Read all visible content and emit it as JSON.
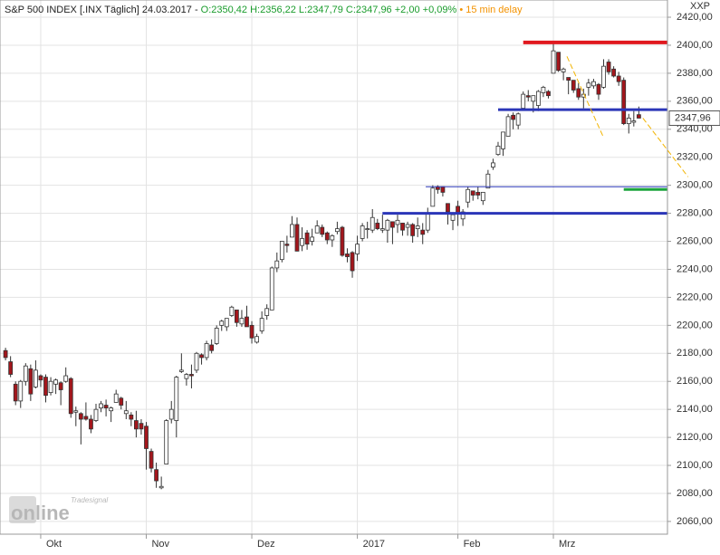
{
  "chart_data": {
    "type": "candlestick",
    "title": "S&P 500 INDEX [.INX Täglich] 24.03.2017 -",
    "ohlc": "O:2350,42 H:2356,22 L:2347,79 C:2347,96",
    "change": "+2,00 +0,09%",
    "delay": "• 15 min delay",
    "axis_code": "XXP",
    "price_label": "2347,96",
    "logo_top": "Tradesignal",
    "logo_main": "online",
    "up_color": "#ffffff",
    "down_color": "#a3161c",
    "outline_color": "#333333",
    "grid": true,
    "xlim": [
      -1.1,
      131.7
    ],
    "xticks": [
      {
        "value": 7,
        "label": "Okt"
      },
      {
        "value": 28,
        "label": "Nov"
      },
      {
        "value": 49,
        "label": "Dez"
      },
      {
        "value": 70,
        "label": "2017"
      },
      {
        "value": 90,
        "label": "Feb"
      },
      {
        "value": 109,
        "label": "Mrz"
      }
    ],
    "ylim": [
      2050.9,
      2432.3
    ],
    "yticks": [
      {
        "value": 2060,
        "label": "2060,00"
      },
      {
        "value": 2080,
        "label": "2080,00"
      },
      {
        "value": 2100,
        "label": "2100,00"
      },
      {
        "value": 2120,
        "label": "2120,00"
      },
      {
        "value": 2140,
        "label": "2140,00"
      },
      {
        "value": 2160,
        "label": "2160,00"
      },
      {
        "value": 2180,
        "label": "2180,00"
      },
      {
        "value": 2200,
        "label": "2200,00"
      },
      {
        "value": 2220,
        "label": "2220,00"
      },
      {
        "value": 2240,
        "label": "2240,00"
      },
      {
        "value": 2260,
        "label": "2260,00"
      },
      {
        "value": 2280,
        "label": "2280,00"
      },
      {
        "value": 2300,
        "label": "2300,00"
      },
      {
        "value": 2320,
        "label": "2320,00"
      },
      {
        "value": 2340,
        "label": "2340,00"
      },
      {
        "value": 2360,
        "label": "2360,00"
      },
      {
        "value": 2380,
        "label": "2380,00"
      },
      {
        "value": 2400,
        "label": "2400,00"
      },
      {
        "value": 2420,
        "label": "2420,00"
      }
    ],
    "open": [
      2182,
      2174,
      2158,
      2146,
      2160,
      2169,
      2156,
      2164,
      2163,
      2152,
      2158,
      2159,
      2160,
      2162,
      2138,
      2137,
      2135,
      2133,
      2132,
      2141,
      2143,
      2139,
      2145,
      2148,
      2137,
      2136,
      2132,
      2130,
      2128,
      2110,
      2097,
      2084,
      2101,
      2133,
      2132,
      2167,
      2162,
      2165,
      2168,
      2179,
      2177,
      2186,
      2187,
      2200,
      2199,
      2207,
      2211,
      2201,
      2206,
      2200,
      2188,
      2196,
      2207,
      2211,
      2241,
      2247,
      2258,
      2263,
      2272,
      2257,
      2266,
      2260,
      2266,
      2270,
      2266,
      2261,
      2267,
      2270,
      2251,
      2252,
      2251,
      2262,
      2269,
      2268,
      2273,
      2268,
      2268,
      2274,
      2272,
      2273,
      2270,
      2272,
      2269,
      2268,
      2268,
      2285,
      2299,
      2299,
      2287,
      2275,
      2285,
      2276,
      2288,
      2296,
      2295,
      2289,
      2298,
      2313,
      2322,
      2326,
      2335,
      2350,
      2343,
      2355,
      2364,
      2360,
      2357,
      2366,
      2367,
      2380,
      2395,
      2381,
      2377,
      2375,
      2369,
      2363,
      2370,
      2371,
      2372,
      2370,
      2388,
      2383,
      2378,
      2375,
      2344,
      2345,
      2350.42
    ],
    "high": [
      2184,
      2178,
      2160,
      2161,
      2173,
      2172,
      2175,
      2165,
      2165,
      2163,
      2162,
      2160,
      2170,
      2163,
      2142,
      2138,
      2145,
      2136,
      2144,
      2146,
      2147,
      2142,
      2154,
      2149,
      2146,
      2138,
      2139,
      2133,
      2131,
      2112,
      2102,
      2092,
      2133,
      2146,
      2164,
      2180,
      2166,
      2172,
      2181,
      2180,
      2189,
      2190,
      2200,
      2204,
      2205,
      2214,
      2211,
      2211,
      2214,
      2203,
      2194,
      2210,
      2215,
      2242,
      2252,
      2260,
      2264,
      2278,
      2277,
      2270,
      2268,
      2269,
      2275,
      2272,
      2267,
      2265,
      2274,
      2271,
      2255,
      2253,
      2264,
      2273,
      2274,
      2283,
      2276,
      2279,
      2276,
      2274,
      2279,
      2273,
      2274,
      2273,
      2277,
      2273,
      2284,
      2300,
      2300,
      2299,
      2287,
      2280,
      2289,
      2283,
      2299,
      2296,
      2299,
      2295,
      2311,
      2319,
      2331,
      2338,
      2351,
      2352,
      2352,
      2367,
      2368,
      2364,
      2368,
      2371,
      2368,
      2401,
      2395,
      2384,
      2377,
      2375,
      2373,
      2369,
      2376,
      2376,
      2373,
      2390,
      2390,
      2385,
      2381,
      2377,
      2351,
      2353,
      2356.22
    ],
    "low": [
      2175,
      2163,
      2143,
      2141,
      2157,
      2146,
      2155,
      2156,
      2145,
      2150,
      2151,
      2143,
      2159,
      2134,
      2128,
      2115,
      2132,
      2123,
      2131,
      2138,
      2135,
      2131,
      2145,
      2140,
      2133,
      2128,
      2120,
      2122,
      2097,
      2095,
      2084,
      2083,
      2101,
      2130,
      2120,
      2166,
      2157,
      2155,
      2166,
      2172,
      2175,
      2180,
      2186,
      2196,
      2196,
      2206,
      2199,
      2199,
      2199,
      2187,
      2187,
      2194,
      2204,
      2211,
      2238,
      2245,
      2252,
      2263,
      2253,
      2253,
      2254,
      2257,
      2266,
      2263,
      2258,
      2256,
      2265,
      2249,
      2245,
      2234,
      2246,
      2260,
      2262,
      2266,
      2268,
      2266,
      2259,
      2258,
      2266,
      2264,
      2264,
      2259,
      2263,
      2258,
      2266,
      2285,
      2294,
      2292,
      2272,
      2268,
      2271,
      2271,
      2284,
      2289,
      2290,
      2286,
      2298,
      2311,
      2321,
      2321,
      2335,
      2340,
      2340,
      2355,
      2360,
      2352,
      2353,
      2363,
      2362,
      2380,
      2381,
      2375,
      2365,
      2366,
      2361,
      2355,
      2364,
      2369,
      2361,
      2369,
      2379,
      2377,
      2371,
      2343,
      2337,
      2342,
      2347.79
    ],
    "close": [
      2177,
      2165,
      2146,
      2160,
      2171,
      2151,
      2168,
      2161,
      2150,
      2160,
      2161,
      2154,
      2164,
      2137,
      2139,
      2133,
      2133,
      2126,
      2140,
      2144,
      2141,
      2141,
      2151,
      2143,
      2139,
      2133,
      2126,
      2126,
      2112,
      2098,
      2089,
      2085,
      2132,
      2140,
      2163,
      2168,
      2165,
      2164,
      2180,
      2177,
      2187,
      2182,
      2198,
      2203,
      2205,
      2213,
      2202,
      2205,
      2199,
      2191,
      2192,
      2205,
      2212,
      2241,
      2246,
      2260,
      2257,
      2272,
      2253,
      2262,
      2258,
      2263,
      2271,
      2265,
      2261,
      2264,
      2269,
      2250,
      2249,
      2239,
      2258,
      2271,
      2269,
      2277,
      2269,
      2269,
      2275,
      2270,
      2275,
      2268,
      2272,
      2264,
      2271,
      2265,
      2280,
      2298,
      2297,
      2295,
      2281,
      2279,
      2280,
      2281,
      2297,
      2293,
      2293,
      2295,
      2308,
      2316,
      2328,
      2338,
      2349,
      2347,
      2351,
      2365,
      2363,
      2364,
      2367,
      2370,
      2364,
      2396,
      2382,
      2383,
      2375,
      2368,
      2363,
      2365,
      2373,
      2374,
      2365,
      2385,
      2381,
      2378,
      2374,
      2344,
      2348,
      2345.96,
      2347.96
    ],
    "levels": [
      {
        "y": 2402,
        "from": 103,
        "color": "#e0191f",
        "width": 4
      },
      {
        "y": 2354,
        "from": 98,
        "color": "#2b36b8",
        "width": 3
      },
      {
        "y": 2299,
        "from": 83.6,
        "color": "#2b36b8",
        "width": 1
      },
      {
        "y": 2280,
        "from": 75,
        "color": "#2b36b8",
        "width": 3
      },
      {
        "y": 2297,
        "from": 123,
        "color": "#1aa33c",
        "width": 3
      }
    ],
    "trendlines": [
      {
        "x": [
          111.7,
          119
        ],
        "y": [
          2392,
          2334
        ],
        "color": "#f2b400"
      },
      {
        "x": [
          126.8,
          135.8
        ],
        "y": [
          2348,
          2306
        ],
        "color": "#f2b400"
      }
    ]
  }
}
